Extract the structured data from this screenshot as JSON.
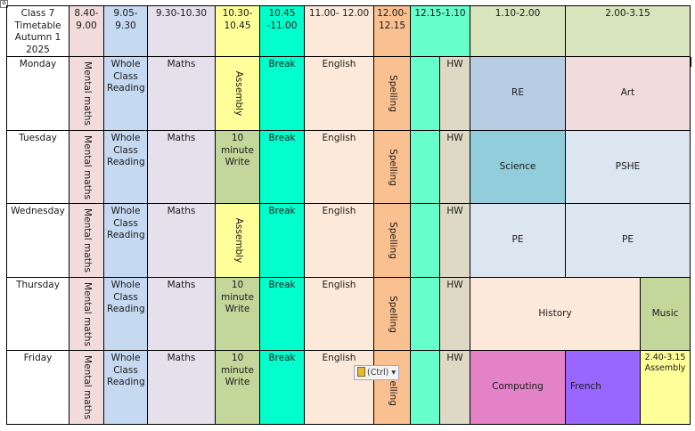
{
  "corner": {
    "title": "Class 7 Timetable Autumn 1 2025"
  },
  "slots": [
    "8.40-9.00",
    "9.05-9.30",
    "9.30-10.30",
    "10.30-10.45",
    "10.45 -11.00",
    "11.00- 12.00",
    "12.00-12.15",
    "12.15-1.10",
    "1.10-2.00",
    "2.00-3.15"
  ],
  "days": [
    "Monday",
    "Tuesday",
    "Wednesday",
    "Thursday",
    "Friday"
  ],
  "common": {
    "mental_maths": "Mental maths",
    "reading": "Whole Class Reading",
    "maths": "Maths",
    "break": "Break",
    "english": "English",
    "spelling": "Spelling",
    "hw": "HW",
    "assembly": "Assembly",
    "write": "10 minute Write"
  },
  "afternoon": {
    "monday": [
      "RE",
      "Art"
    ],
    "tuesday": [
      "Science",
      "PSHE"
    ],
    "wednesday": [
      "PE",
      "PE"
    ],
    "thursday": [
      "History",
      "Music"
    ],
    "friday": [
      "Computing",
      "French",
      "2.40-3.15 Assembly"
    ]
  },
  "paste_options": {
    "label": "(Ctrl)",
    "arrow": "▾"
  },
  "anchor_glyph": "⊕",
  "colors": {
    "mental": "#f2dcdb",
    "reading": "#c5d9f1",
    "maths": "#e5e0ec",
    "assembly": "#ffff99",
    "write": "#c4d79b",
    "break": "#00ffcc",
    "english": "#fde9d9",
    "spelling": "#fac090",
    "lunch": "#66ffcc",
    "hw": "#ddd9c4",
    "re": "#b8cce4",
    "art": "#f2dcdb",
    "science": "#92cddc",
    "pshe": "#dce6f1",
    "pe": "#dce6f1",
    "history": "#fde9d9",
    "music": "#c4d79b",
    "computing": "#e482c8",
    "french": "#9966ff",
    "assembly_pm": "#ffff99",
    "header_pm": "#d8e4bc"
  }
}
